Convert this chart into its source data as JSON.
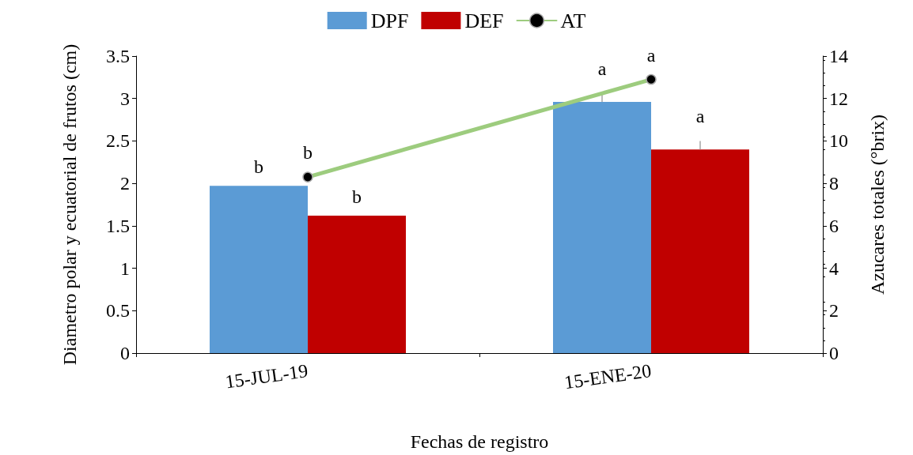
{
  "chart_data": {
    "type": "bar",
    "xlabel": "Fechas de registro",
    "ylabel": "Diametro polar y ecuatorial de frutos (cm)",
    "y2label": "Azucares totales (°brix)",
    "categories": [
      "15-JUL-19",
      "15-ENE-20"
    ],
    "series": [
      {
        "name": "DPF",
        "color": "#5b9bd5",
        "values": [
          1.97,
          2.96
        ],
        "errors": [
          null,
          [
            2.96,
            3.08
          ]
        ],
        "value_labels": [
          "b",
          "a"
        ]
      },
      {
        "name": "DEF",
        "color": "#c00000",
        "values": [
          1.62,
          2.4
        ],
        "errors": [
          null,
          [
            2.4,
            2.5
          ]
        ],
        "value_labels": [
          "b",
          "a"
        ]
      },
      {
        "name": "AT",
        "type": "line",
        "axis": "y2",
        "color": "#9dcc7e",
        "values": [
          8.3,
          12.9
        ],
        "marker": "circle",
        "value_labels": [
          "b",
          "a"
        ]
      }
    ],
    "ylim": [
      0,
      3.5
    ],
    "yticks": [
      0,
      0.5,
      1,
      1.5,
      2,
      2.5,
      3,
      3.5
    ],
    "y2lim": [
      0,
      14
    ],
    "y2ticks": [
      0,
      2,
      4,
      6,
      8,
      10,
      12,
      14
    ],
    "grid": false,
    "legend": "top"
  }
}
